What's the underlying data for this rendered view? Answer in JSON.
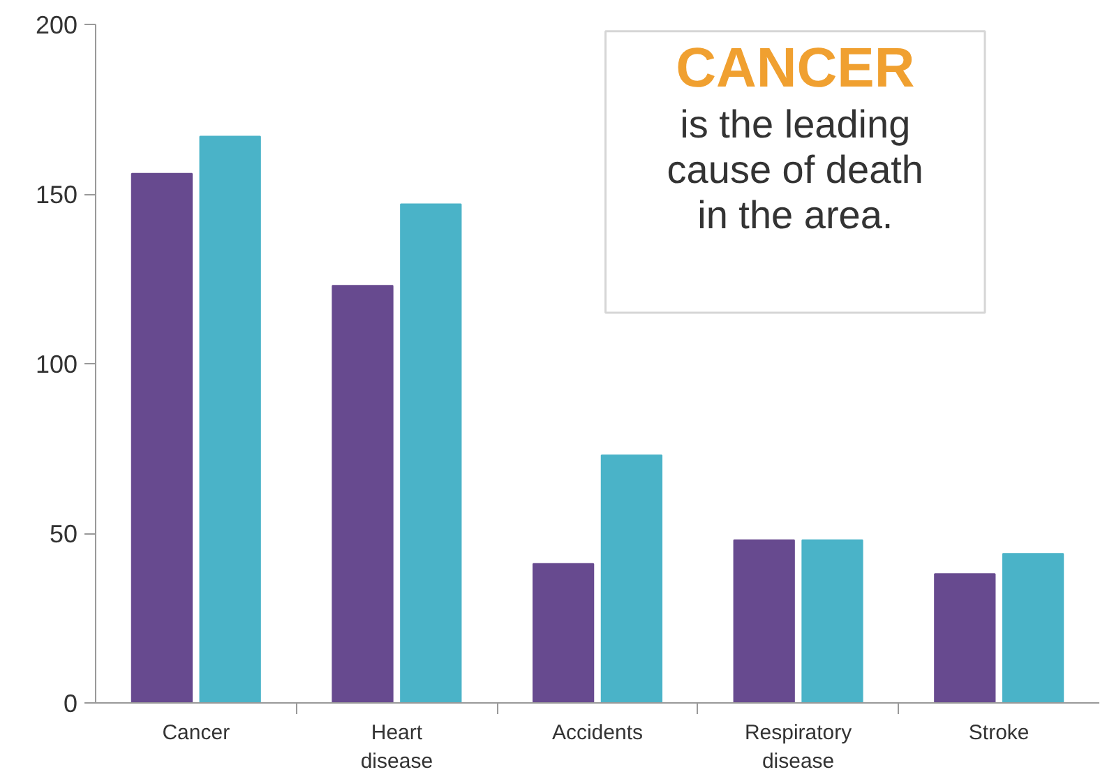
{
  "chart_data": {
    "type": "bar",
    "categories": [
      "Cancer",
      "Heart disease",
      "Accidents",
      "Respiratory disease",
      "Stroke"
    ],
    "series": [
      {
        "color": "#674a8f",
        "values": [
          156,
          123,
          41,
          48,
          38
        ]
      },
      {
        "color": "#4ab3c8",
        "values": [
          167,
          147,
          73,
          48,
          44
        ]
      }
    ],
    "ylim": [
      0,
      200
    ],
    "yticks": [
      0,
      50,
      100,
      150,
      200
    ],
    "grid": false,
    "annotations": [
      "CANCER",
      "is the leading\ncause of death\nin the area."
    ]
  }
}
